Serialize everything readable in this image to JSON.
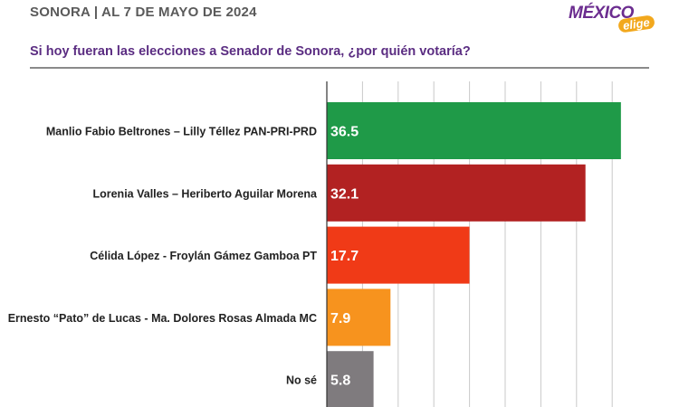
{
  "header": {
    "title": "SONORA | AL 7 DE MAYO DE 2024",
    "logo_main": "MÉXICO",
    "logo_sub": "elige"
  },
  "chart_data": {
    "type": "bar",
    "orientation": "horizontal",
    "title": "Si hoy fueran las elecciones a Senador de Sonora, ¿por quién votaría?",
    "categories": [
      "Manlio Fabio Beltrones – Lilly Téllez PAN-PRI-PRD",
      "Lorenia Valles – Heriberto Aguilar Morena",
      "Célida López - Froylán Gámez Gamboa PT",
      "Ernesto “Pato” de Lucas - Ma. Dolores Rosas Almada MC",
      "No sé"
    ],
    "values": [
      36.5,
      32.1,
      17.7,
      7.9,
      5.8
    ],
    "value_labels": [
      "36.5",
      "32.1",
      "17.7",
      "7.9",
      "5.8"
    ],
    "colors": [
      "#1f9a48",
      "#b22222",
      "#f03a17",
      "#f7931e",
      "#7f7b7e"
    ],
    "xlim": [
      0,
      40
    ],
    "grid": true
  }
}
